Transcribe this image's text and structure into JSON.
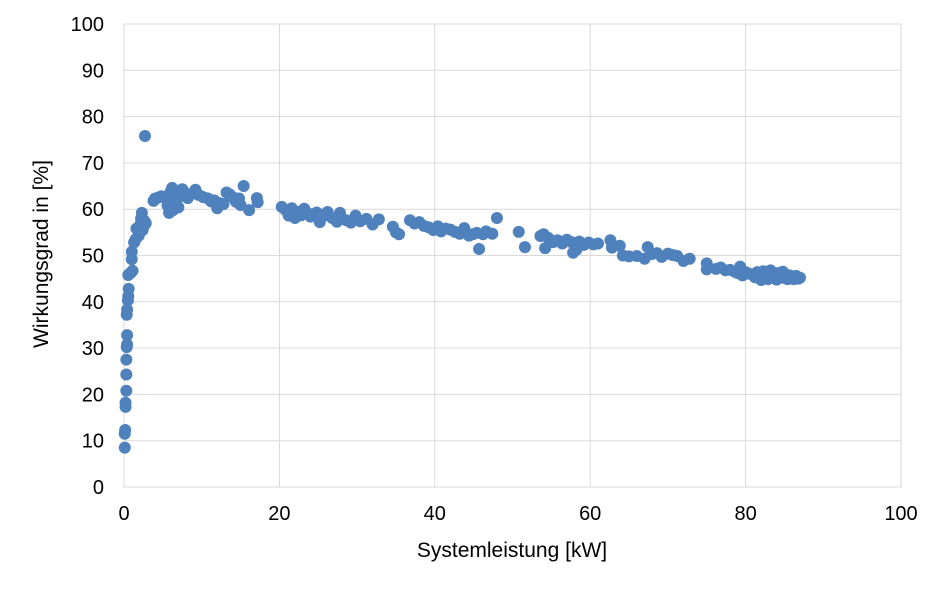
{
  "chart_data": {
    "type": "scatter",
    "title": "",
    "xlabel": "Systemleistung [kW]",
    "ylabel": "Wirkungsgrad in [%]",
    "xlim": [
      0,
      100
    ],
    "ylim": [
      0,
      100
    ],
    "xticks": [
      0,
      20,
      40,
      60,
      80,
      100
    ],
    "yticks": [
      0,
      10,
      20,
      30,
      40,
      50,
      60,
      70,
      80,
      90,
      100
    ],
    "grid": true,
    "marker_color": "#4f81bd",
    "series": [
      {
        "name": "Wirkungsgrad",
        "points": [
          [
            0.1,
            8.5
          ],
          [
            0.1,
            11.5
          ],
          [
            0.15,
            12.3
          ],
          [
            0.2,
            17.3
          ],
          [
            0.2,
            18.2
          ],
          [
            0.3,
            20.8
          ],
          [
            0.3,
            24.3
          ],
          [
            0.3,
            27.5
          ],
          [
            0.35,
            30.2
          ],
          [
            0.4,
            30.8
          ],
          [
            0.4,
            32.8
          ],
          [
            0.35,
            37.2
          ],
          [
            0.4,
            38.3
          ],
          [
            0.5,
            40.3
          ],
          [
            0.55,
            41.2
          ],
          [
            0.6,
            42.8
          ],
          [
            0.55,
            45.8
          ],
          [
            0.9,
            46.3
          ],
          [
            1.1,
            46.7
          ],
          [
            1.0,
            49.2
          ],
          [
            1.0,
            50.8
          ],
          [
            1.3,
            52.8
          ],
          [
            1.5,
            53.5
          ],
          [
            1.6,
            55.8
          ],
          [
            1.9,
            54.3
          ],
          [
            2.1,
            56.7
          ],
          [
            2.4,
            55.5
          ],
          [
            2.6,
            56.5
          ],
          [
            2.2,
            58.0
          ],
          [
            2.3,
            59.2
          ],
          [
            2.6,
            57.5
          ],
          [
            2.8,
            57.0
          ],
          [
            2.7,
            75.8
          ],
          [
            3.8,
            61.8
          ],
          [
            4.0,
            62.3
          ],
          [
            4.4,
            62.5
          ],
          [
            4.8,
            62.8
          ],
          [
            5.2,
            62.6
          ],
          [
            5.6,
            62.2
          ],
          [
            5.6,
            60.8
          ],
          [
            5.8,
            59.2
          ],
          [
            6.0,
            63.8
          ],
          [
            6.2,
            64.6
          ],
          [
            6.3,
            59.8
          ],
          [
            6.6,
            63.9
          ],
          [
            6.8,
            62.2
          ],
          [
            7.0,
            60.4
          ],
          [
            7.2,
            62.8
          ],
          [
            7.5,
            64.3
          ],
          [
            7.8,
            63.6
          ],
          [
            8.2,
            62.4
          ],
          [
            8.6,
            63.2
          ],
          [
            9.2,
            64.2
          ],
          [
            9.6,
            63.1
          ],
          [
            10.2,
            62.6
          ],
          [
            10.8,
            62.3
          ],
          [
            11.2,
            61.7
          ],
          [
            11.6,
            61.9
          ],
          [
            12.0,
            60.2
          ],
          [
            12.3,
            61.3
          ],
          [
            12.8,
            61.1
          ],
          [
            13.2,
            63.6
          ],
          [
            13.6,
            63.2
          ],
          [
            14.0,
            62.6
          ],
          [
            14.4,
            61.6
          ],
          [
            14.8,
            62.3
          ],
          [
            15.0,
            60.9
          ],
          [
            15.4,
            65.0
          ],
          [
            16.1,
            59.8
          ],
          [
            17.1,
            62.4
          ],
          [
            17.2,
            61.5
          ],
          [
            20.3,
            60.5
          ],
          [
            20.8,
            59.8
          ],
          [
            21.2,
            58.6
          ],
          [
            21.6,
            60.2
          ],
          [
            22.0,
            58.1
          ],
          [
            22.4,
            59.4
          ],
          [
            22.8,
            58.7
          ],
          [
            23.2,
            60.1
          ],
          [
            23.6,
            59.2
          ],
          [
            24.0,
            58.4
          ],
          [
            24.4,
            58.9
          ],
          [
            24.8,
            59.3
          ],
          [
            25.2,
            57.2
          ],
          [
            25.8,
            58.6
          ],
          [
            26.2,
            59.4
          ],
          [
            26.8,
            58.1
          ],
          [
            27.4,
            57.3
          ],
          [
            27.8,
            59.2
          ],
          [
            28.6,
            57.6
          ],
          [
            29.2,
            57.1
          ],
          [
            29.8,
            58.6
          ],
          [
            30.4,
            57.4
          ],
          [
            31.2,
            57.9
          ],
          [
            32.0,
            56.7
          ],
          [
            32.8,
            57.8
          ],
          [
            34.6,
            56.2
          ],
          [
            35.0,
            55.0
          ],
          [
            35.4,
            54.6
          ],
          [
            36.8,
            57.6
          ],
          [
            37.4,
            56.9
          ],
          [
            38.0,
            57.2
          ],
          [
            38.6,
            56.4
          ],
          [
            39.2,
            56.1
          ],
          [
            39.8,
            55.5
          ],
          [
            40.4,
            56.3
          ],
          [
            40.8,
            55.2
          ],
          [
            41.4,
            55.8
          ],
          [
            42.0,
            55.6
          ],
          [
            42.6,
            55.1
          ],
          [
            43.2,
            54.7
          ],
          [
            43.8,
            55.9
          ],
          [
            44.4,
            54.3
          ],
          [
            44.9,
            54.6
          ],
          [
            45.4,
            54.9
          ],
          [
            45.7,
            51.4
          ],
          [
            46.2,
            54.6
          ],
          [
            46.6,
            55.2
          ],
          [
            47.4,
            54.7
          ],
          [
            48.0,
            58.1
          ],
          [
            50.8,
            55.1
          ],
          [
            51.6,
            51.8
          ],
          [
            53.6,
            54.2
          ],
          [
            54.0,
            54.6
          ],
          [
            54.2,
            51.6
          ],
          [
            54.6,
            53.8
          ],
          [
            55.2,
            52.9
          ],
          [
            55.8,
            53.3
          ],
          [
            56.4,
            52.6
          ],
          [
            57.0,
            53.4
          ],
          [
            57.6,
            52.9
          ],
          [
            57.8,
            50.6
          ],
          [
            58.2,
            51.2
          ],
          [
            58.6,
            53.0
          ],
          [
            59.2,
            52.3
          ],
          [
            59.8,
            52.8
          ],
          [
            60.4,
            52.4
          ],
          [
            61.0,
            52.6
          ],
          [
            62.6,
            53.3
          ],
          [
            62.8,
            51.7
          ],
          [
            63.8,
            52.1
          ],
          [
            64.2,
            50.0
          ],
          [
            65.0,
            49.8
          ],
          [
            66.0,
            49.9
          ],
          [
            67.0,
            49.3
          ],
          [
            67.4,
            51.8
          ],
          [
            67.9,
            50.3
          ],
          [
            68.6,
            50.5
          ],
          [
            69.2,
            49.7
          ],
          [
            70.0,
            50.4
          ],
          [
            70.6,
            50.1
          ],
          [
            71.2,
            49.9
          ],
          [
            72.0,
            48.8
          ],
          [
            72.8,
            49.3
          ],
          [
            75.0,
            48.3
          ],
          [
            75.0,
            47.0
          ],
          [
            76.2,
            47.1
          ],
          [
            76.8,
            47.4
          ],
          [
            77.4,
            46.8
          ],
          [
            78.0,
            46.9
          ],
          [
            78.6,
            46.5
          ],
          [
            79.0,
            46.2
          ],
          [
            79.3,
            47.6
          ],
          [
            79.6,
            45.7
          ],
          [
            80.0,
            46.4
          ],
          [
            80.4,
            46.1
          ],
          [
            80.8,
            45.9
          ],
          [
            81.2,
            45.3
          ],
          [
            81.5,
            46.4
          ],
          [
            81.8,
            45.1
          ],
          [
            82.0,
            44.7
          ],
          [
            82.3,
            46.6
          ],
          [
            82.6,
            45.6
          ],
          [
            82.9,
            44.9
          ],
          [
            83.2,
            46.8
          ],
          [
            83.4,
            45.3
          ],
          [
            83.7,
            45.9
          ],
          [
            84.0,
            44.8
          ],
          [
            84.2,
            46.2
          ],
          [
            84.5,
            45.2
          ],
          [
            84.8,
            46.5
          ],
          [
            85.1,
            45.1
          ],
          [
            85.4,
            44.9
          ],
          [
            85.7,
            45.7
          ],
          [
            86.0,
            45.3
          ],
          [
            86.2,
            44.9
          ],
          [
            86.5,
            45.6
          ],
          [
            86.8,
            45.0
          ],
          [
            87.0,
            45.2
          ]
        ]
      }
    ]
  }
}
